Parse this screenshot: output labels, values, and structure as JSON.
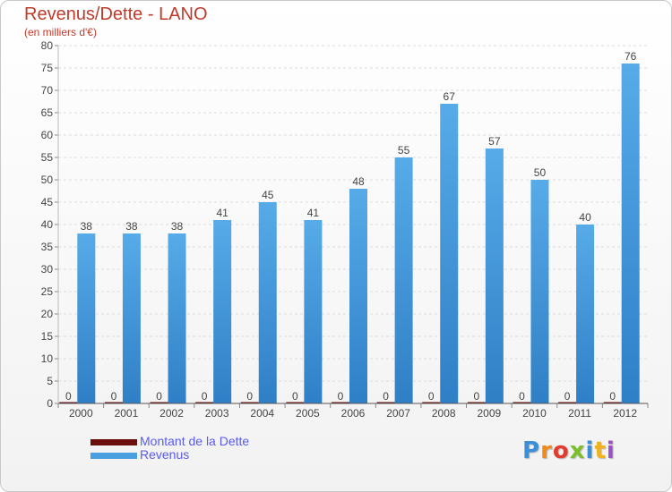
{
  "header": {
    "title": "Revenus/Dette - LANO",
    "subtitle": "(en milliers d'€)"
  },
  "legend": {
    "debt_label": "Montant de la Dette",
    "revenue_label": "Revenus"
  },
  "logo": {
    "text": "Proxiti",
    "letters": [
      {
        "ch": "P",
        "color": "#3a8fd8"
      },
      {
        "ch": "r",
        "color": "#f08a1c"
      },
      {
        "ch": "o",
        "color": "#e23c2e"
      },
      {
        "ch": "x",
        "color": "#7bbf2a"
      },
      {
        "ch": "i",
        "color": "#3a8fd8"
      },
      {
        "ch": "t",
        "color": "#f2b21b"
      },
      {
        "ch": "i",
        "color": "#9b52c2"
      }
    ]
  },
  "colors": {
    "revenue": "#4a9fe0",
    "revenue_dark": "#2f7fc6",
    "debt": "#6b0f0f",
    "title": "#c03a2b",
    "legend_text": "#5a5af0"
  },
  "chart_data": {
    "type": "bar",
    "title": "Revenus/Dette - LANO",
    "subtitle": "(en milliers d'€)",
    "categories": [
      "2000",
      "2001",
      "2002",
      "2003",
      "2004",
      "2005",
      "2006",
      "2007",
      "2008",
      "2009",
      "2010",
      "2011",
      "2012"
    ],
    "series": [
      {
        "name": "Montant de la Dette",
        "values": [
          0,
          0,
          0,
          0,
          0,
          0,
          0,
          0,
          0,
          0,
          0,
          0,
          0
        ]
      },
      {
        "name": "Revenus",
        "values": [
          38,
          38,
          38,
          41,
          45,
          41,
          48,
          55,
          67,
          57,
          50,
          40,
          76
        ]
      }
    ],
    "ylim": [
      0,
      80
    ],
    "yticks": [
      0,
      5,
      10,
      15,
      20,
      25,
      30,
      35,
      40,
      45,
      50,
      55,
      60,
      65,
      70,
      75,
      80
    ],
    "grid": true,
    "legend_position": "bottom-left"
  }
}
